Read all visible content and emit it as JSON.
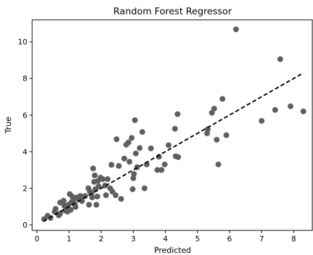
{
  "chart_data": {
    "type": "scatter",
    "title": "Random Forest Regressor",
    "xlabel": "Predicted",
    "ylabel": "True",
    "xlim": [
      -0.15,
      8.6
    ],
    "ylim": [
      -0.3,
      11.2
    ],
    "xticks": [
      0,
      1,
      2,
      3,
      4,
      5,
      6,
      7,
      8
    ],
    "yticks": [
      0,
      2,
      4,
      6,
      8,
      10
    ],
    "grid": false,
    "point_color": "#5f5f5f",
    "line_color": "#000000",
    "reference_line": {
      "style": "dashed",
      "x": [
        0.2,
        8.3
      ],
      "y": [
        0.2,
        8.3
      ]
    },
    "points": [
      {
        "x": 0.22,
        "y": 0.32
      },
      {
        "x": 0.33,
        "y": 0.5
      },
      {
        "x": 0.42,
        "y": 0.38
      },
      {
        "x": 0.55,
        "y": 0.72
      },
      {
        "x": 0.58,
        "y": 0.88
      },
      {
        "x": 0.68,
        "y": 0.52
      },
      {
        "x": 0.72,
        "y": 1.22
      },
      {
        "x": 0.72,
        "y": 0.62
      },
      {
        "x": 0.83,
        "y": 1.32
      },
      {
        "x": 0.85,
        "y": 1.05
      },
      {
        "x": 0.88,
        "y": 0.78
      },
      {
        "x": 0.92,
        "y": 0.92
      },
      {
        "x": 0.95,
        "y": 0.72
      },
      {
        "x": 0.98,
        "y": 1.1
      },
      {
        "x": 1.02,
        "y": 1.68
      },
      {
        "x": 1.05,
        "y": 0.82
      },
      {
        "x": 1.08,
        "y": 1.25
      },
      {
        "x": 1.1,
        "y": 1.55
      },
      {
        "x": 1.15,
        "y": 1.4
      },
      {
        "x": 1.18,
        "y": 1.12
      },
      {
        "x": 1.2,
        "y": 0.98
      },
      {
        "x": 1.25,
        "y": 1.5
      },
      {
        "x": 1.3,
        "y": 1.42
      },
      {
        "x": 1.35,
        "y": 1.58
      },
      {
        "x": 1.4,
        "y": 1.3
      },
      {
        "x": 1.5,
        "y": 1.58
      },
      {
        "x": 1.6,
        "y": 2.0
      },
      {
        "x": 1.62,
        "y": 1.1
      },
      {
        "x": 1.65,
        "y": 1.82
      },
      {
        "x": 1.7,
        "y": 1.72
      },
      {
        "x": 1.72,
        "y": 1.5
      },
      {
        "x": 1.75,
        "y": 3.08
      },
      {
        "x": 1.78,
        "y": 2.35
      },
      {
        "x": 1.8,
        "y": 2.7
      },
      {
        "x": 1.82,
        "y": 1.95
      },
      {
        "x": 1.85,
        "y": 1.1
      },
      {
        "x": 1.88,
        "y": 1.55
      },
      {
        "x": 1.9,
        "y": 2.4
      },
      {
        "x": 1.92,
        "y": 2.1
      },
      {
        "x": 1.98,
        "y": 2.58
      },
      {
        "x": 2.05,
        "y": 2.5
      },
      {
        "x": 2.12,
        "y": 2.15
      },
      {
        "x": 2.15,
        "y": 1.62
      },
      {
        "x": 2.2,
        "y": 2.5
      },
      {
        "x": 2.28,
        "y": 2.0
      },
      {
        "x": 2.32,
        "y": 3.28
      },
      {
        "x": 2.35,
        "y": 1.82
      },
      {
        "x": 2.45,
        "y": 1.62
      },
      {
        "x": 2.48,
        "y": 4.68
      },
      {
        "x": 2.55,
        "y": 3.22
      },
      {
        "x": 2.62,
        "y": 1.42
      },
      {
        "x": 2.72,
        "y": 3.62
      },
      {
        "x": 2.78,
        "y": 4.38
      },
      {
        "x": 2.85,
        "y": 4.5
      },
      {
        "x": 2.88,
        "y": 3.45
      },
      {
        "x": 2.95,
        "y": 4.75
      },
      {
        "x": 2.98,
        "y": 1.95
      },
      {
        "x": 3.0,
        "y": 2.55
      },
      {
        "x": 3.02,
        "y": 2.78
      },
      {
        "x": 3.05,
        "y": 5.72
      },
      {
        "x": 3.08,
        "y": 3.9
      },
      {
        "x": 3.12,
        "y": 3.15
      },
      {
        "x": 3.2,
        "y": 4.2
      },
      {
        "x": 3.28,
        "y": 5.08
      },
      {
        "x": 3.35,
        "y": 2.0
      },
      {
        "x": 3.42,
        "y": 3.3
      },
      {
        "x": 3.55,
        "y": 4.18
      },
      {
        "x": 3.75,
        "y": 3.0
      },
      {
        "x": 3.8,
        "y": 3.72
      },
      {
        "x": 3.88,
        "y": 3.0
      },
      {
        "x": 3.98,
        "y": 3.3
      },
      {
        "x": 4.1,
        "y": 4.35
      },
      {
        "x": 4.3,
        "y": 5.25
      },
      {
        "x": 4.32,
        "y": 3.75
      },
      {
        "x": 4.38,
        "y": 6.05
      },
      {
        "x": 4.4,
        "y": 3.7
      },
      {
        "x": 5.3,
        "y": 5.0
      },
      {
        "x": 5.32,
        "y": 5.22
      },
      {
        "x": 5.45,
        "y": 6.12
      },
      {
        "x": 5.52,
        "y": 6.35
      },
      {
        "x": 5.6,
        "y": 4.65
      },
      {
        "x": 5.65,
        "y": 3.3
      },
      {
        "x": 5.78,
        "y": 6.88
      },
      {
        "x": 5.9,
        "y": 4.9
      },
      {
        "x": 6.2,
        "y": 10.68
      },
      {
        "x": 7.0,
        "y": 5.68
      },
      {
        "x": 7.42,
        "y": 6.28
      },
      {
        "x": 7.58,
        "y": 9.05
      },
      {
        "x": 7.9,
        "y": 6.48
      },
      {
        "x": 8.3,
        "y": 6.2
      }
    ]
  }
}
